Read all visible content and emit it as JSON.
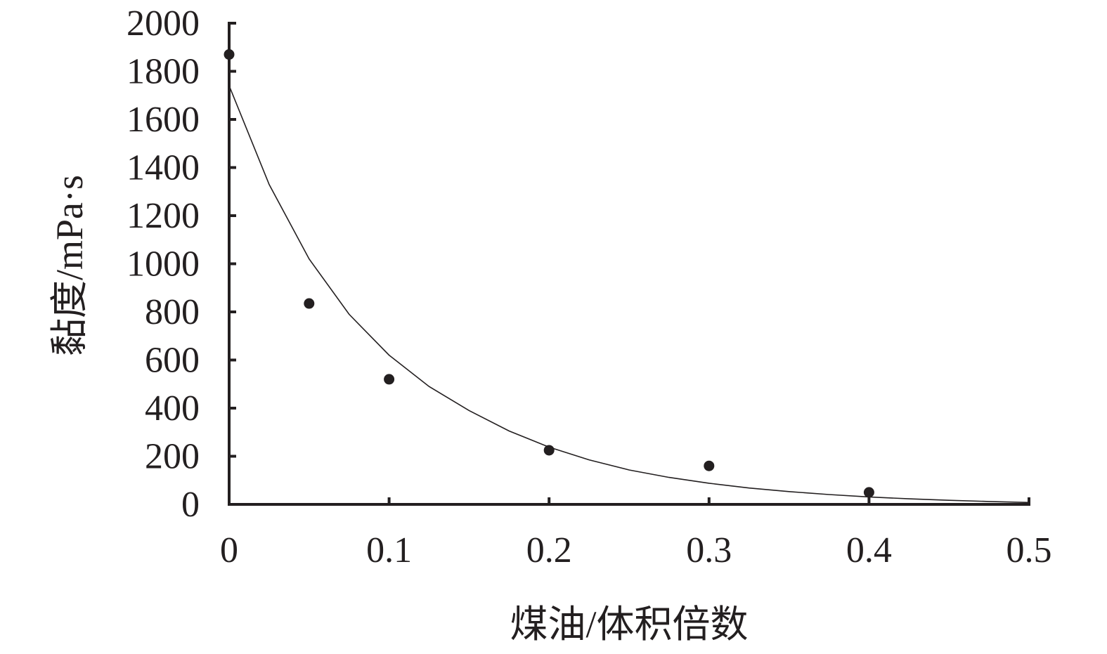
{
  "chart_data": {
    "type": "scatter",
    "title": "",
    "xlabel": "煤油/体积倍数",
    "ylabel": "黏度/mPa·s",
    "xlim": [
      0,
      0.5
    ],
    "ylim": [
      0,
      2000
    ],
    "x_ticks": [
      0,
      0.1,
      0.2,
      0.3,
      0.4,
      0.5
    ],
    "x_tick_labels": [
      "0",
      "0.1",
      "0.2",
      "0.3",
      "0.4",
      "0.5"
    ],
    "y_ticks": [
      0,
      200,
      400,
      600,
      800,
      1000,
      1200,
      1400,
      1600,
      1800,
      2000
    ],
    "y_tick_labels": [
      "0",
      "200",
      "400",
      "600",
      "800",
      "1000",
      "1200",
      "1400",
      "1600",
      "1800",
      "2000"
    ],
    "grid": false,
    "legend": "none",
    "series": [
      {
        "kind": "points",
        "x": [
          0,
          0.05,
          0.1,
          0.2,
          0.3,
          0.4
        ],
        "y": [
          1870,
          835,
          520,
          225,
          160,
          50
        ]
      },
      {
        "kind": "trendline",
        "x": [
          0,
          0.025,
          0.05,
          0.075,
          0.1,
          0.125,
          0.15,
          0.175,
          0.2,
          0.225,
          0.25,
          0.275,
          0.3,
          0.325,
          0.35,
          0.375,
          0.4,
          0.425,
          0.45,
          0.475,
          0.5
        ],
        "y": [
          1740,
          1330,
          1020,
          790,
          620,
          490,
          390,
          305,
          238,
          185,
          143,
          112,
          88,
          68,
          53,
          41,
          31,
          23,
          17,
          12,
          8
        ]
      }
    ],
    "colors": {
      "axis": "#231f20",
      "points": "#231f20",
      "trendline": "#231f20"
    }
  }
}
